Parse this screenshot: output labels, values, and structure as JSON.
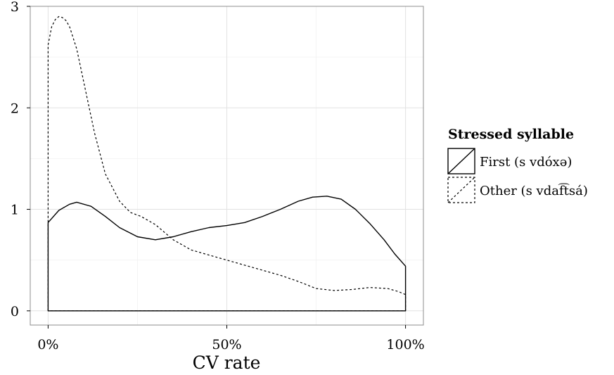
{
  "chart_data": {
    "type": "area",
    "xlabel": "CV rate",
    "ylabel": "",
    "xlim": [
      -0.05,
      1.05
    ],
    "ylim": [
      -0.14,
      3.0
    ],
    "x_ticks": [
      {
        "value": 0,
        "label": "0%"
      },
      {
        "value": 0.5,
        "label": "50%"
      },
      {
        "value": 1,
        "label": "100%"
      }
    ],
    "y_ticks": [
      {
        "value": 0,
        "label": "0"
      },
      {
        "value": 1,
        "label": "1"
      },
      {
        "value": 2,
        "label": "2"
      },
      {
        "value": 3,
        "label": "3"
      }
    ],
    "grid": true,
    "legend": {
      "title": "Stressed syllable",
      "position": "right"
    },
    "series": [
      {
        "name": "First (s vdóxə)",
        "line_style": "solid",
        "x": [
          0,
          0.03,
          0.06,
          0.08,
          0.12,
          0.16,
          0.2,
          0.25,
          0.3,
          0.35,
          0.4,
          0.45,
          0.5,
          0.55,
          0.6,
          0.65,
          0.7,
          0.74,
          0.78,
          0.82,
          0.86,
          0.9,
          0.94,
          0.97,
          1.0
        ],
        "y": [
          0.87,
          0.99,
          1.05,
          1.07,
          1.03,
          0.93,
          0.82,
          0.73,
          0.7,
          0.73,
          0.78,
          0.82,
          0.84,
          0.87,
          0.93,
          1.0,
          1.08,
          1.12,
          1.13,
          1.1,
          1.0,
          0.86,
          0.7,
          0.56,
          0.44
        ]
      },
      {
        "name": "Other (s vdaf͡tsá)",
        "line_style": "dotted",
        "x": [
          0,
          0.01,
          0.02,
          0.03,
          0.04,
          0.05,
          0.06,
          0.08,
          0.1,
          0.13,
          0.16,
          0.2,
          0.23,
          0.26,
          0.3,
          0.35,
          0.4,
          0.45,
          0.5,
          0.55,
          0.6,
          0.65,
          0.7,
          0.75,
          0.8,
          0.85,
          0.9,
          0.95,
          0.98,
          1.0
        ],
        "y": [
          2.62,
          2.8,
          2.87,
          2.9,
          2.89,
          2.86,
          2.8,
          2.58,
          2.25,
          1.75,
          1.35,
          1.08,
          0.97,
          0.93,
          0.85,
          0.7,
          0.6,
          0.55,
          0.5,
          0.45,
          0.4,
          0.35,
          0.29,
          0.22,
          0.2,
          0.21,
          0.23,
          0.22,
          0.19,
          0.16
        ]
      }
    ]
  }
}
